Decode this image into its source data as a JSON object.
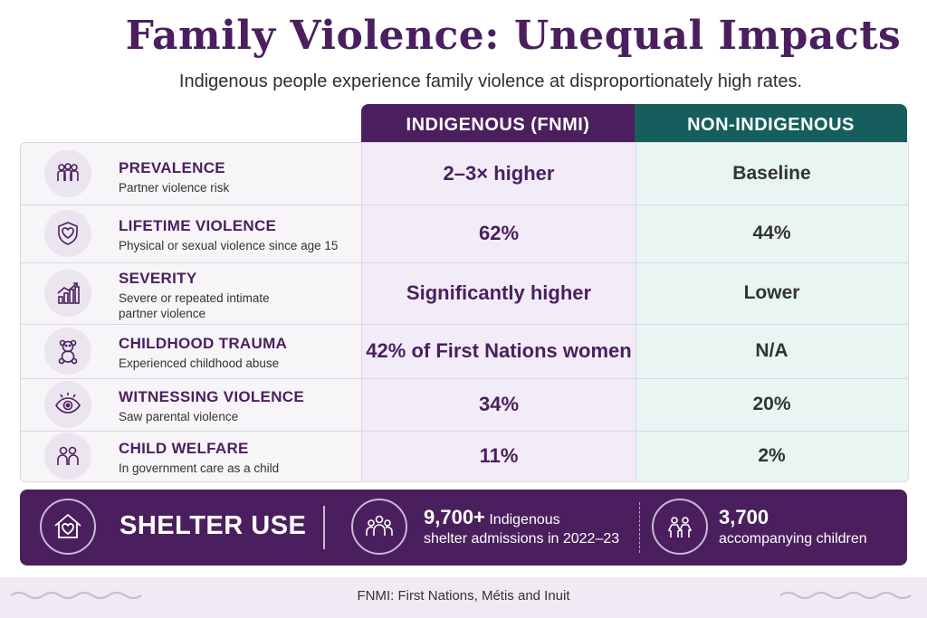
{
  "title": "Family Violence: Unequal Impacts",
  "subtitle": "Indigenous people experience family violence at disproportionately high rates.",
  "columns": {
    "indigenous": "INDIGENOUS (FNMI)",
    "non_indigenous": "NON-INDIGENOUS"
  },
  "rows": [
    {
      "icon": "people-group-icon",
      "heading": "PREVALENCE",
      "sub": "Partner violence risk",
      "indigenous": "2–3× higher",
      "non_indigenous": "Baseline"
    },
    {
      "icon": "shield-heart-icon",
      "heading": "LIFETIME VIOLENCE",
      "sub": "Physical or sexual violence since age 15",
      "indigenous": "62%",
      "non_indigenous": "44%"
    },
    {
      "icon": "bar-chart-up-icon",
      "heading": "SEVERITY",
      "sub": "Severe or repeated intimate partner violence",
      "indigenous": "Significantly higher",
      "non_indigenous": "Lower"
    },
    {
      "icon": "teddy-bear-icon",
      "heading": "CHILDHOOD TRAUMA",
      "sub": "Experienced childhood abuse",
      "indigenous": "42% of First Nations women",
      "non_indigenous": "N/A"
    },
    {
      "icon": "eye-icon",
      "heading": "WITNESSING VIOLENCE",
      "sub": "Saw parental violence",
      "indigenous": "34%",
      "non_indigenous": "20%"
    },
    {
      "icon": "two-people-icon",
      "heading": "CHILD WELFARE",
      "sub": "In government care as a child",
      "indigenous": "11%",
      "non_indigenous": "2%"
    }
  ],
  "shelter": {
    "title": "SHELTER USE",
    "stat1_big": "9,700+",
    "stat1_rest": "Indigenous",
    "stat1_line2": "shelter admissions in 2022–23",
    "stat2_big": "3,700",
    "stat2_line2": "accompanying children"
  },
  "footer": "FNMI: First Nations, Métis and Inuit",
  "colors": {
    "purple": "#4b1f5e",
    "teal": "#165e5e"
  }
}
